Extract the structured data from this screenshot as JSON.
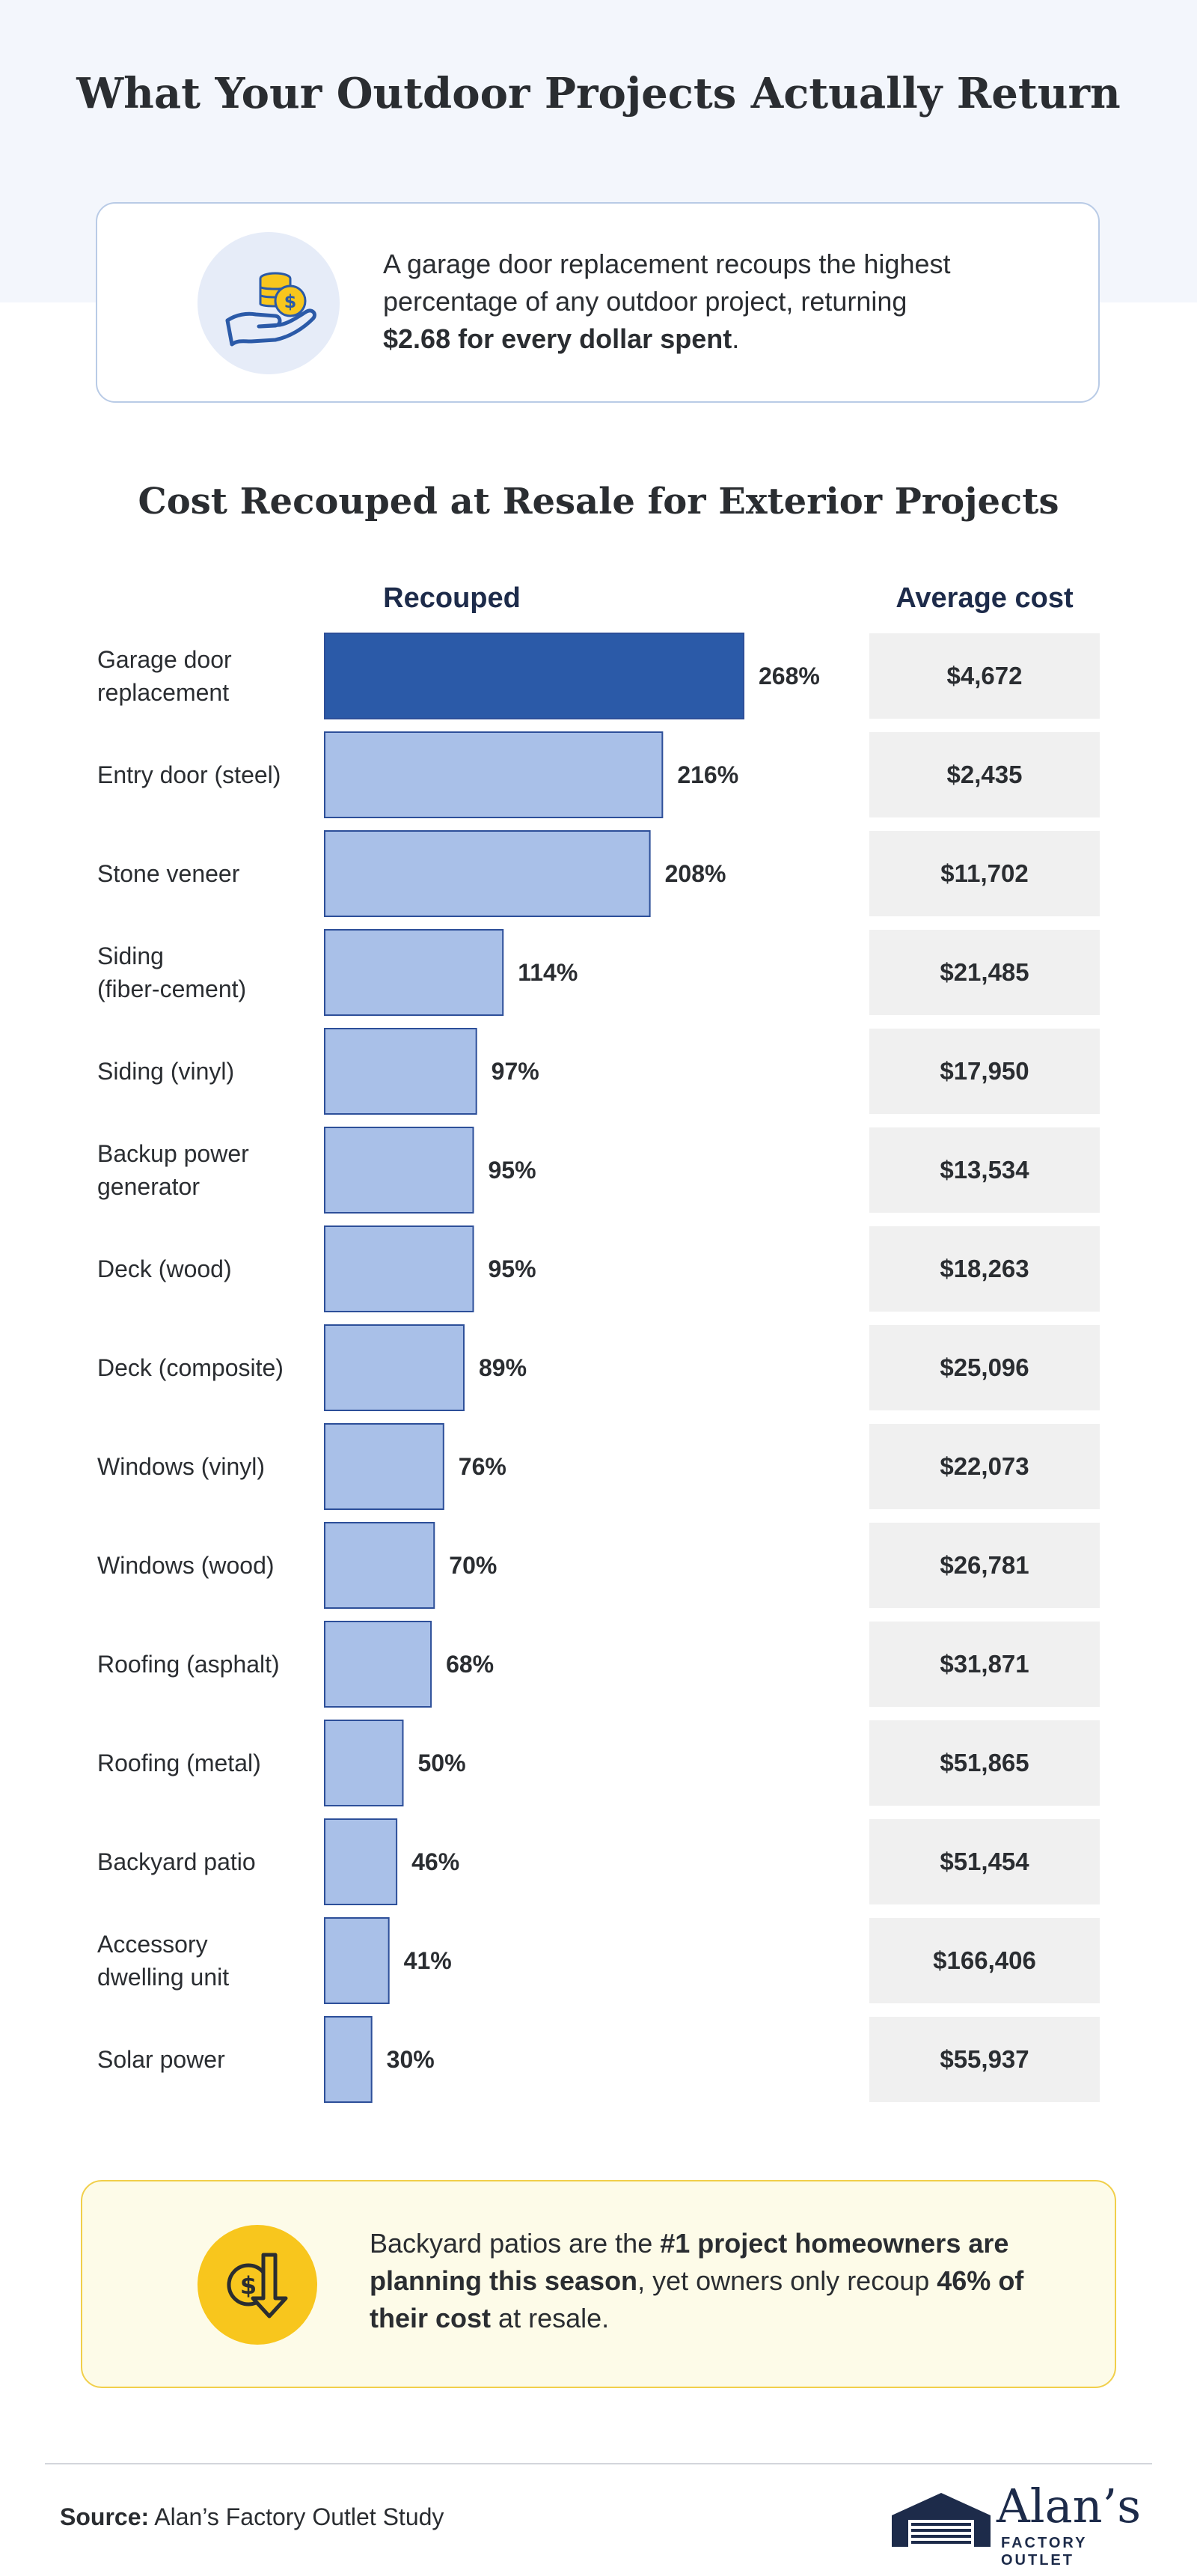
{
  "header": {
    "title": "What Your Outdoor Projects Actually Return"
  },
  "callout": {
    "text_before": "A garage door replacement recoups the highest percentage of any outdoor project, returning ",
    "text_bold": "$2.68 for every dollar spent",
    "text_after": ".",
    "icon": "hand-coins-icon"
  },
  "chart_data": {
    "type": "bar",
    "orientation": "horizontal",
    "title": "Cost Recouped at Resale for Exterior Projects",
    "columns": {
      "recouped": "Recouped",
      "average_cost": "Average cost"
    },
    "categories": [
      [
        "Garage door",
        "replacement"
      ],
      [
        "Entry door (steel)"
      ],
      [
        "Stone veneer"
      ],
      [
        "Siding",
        "(fiber-cement)"
      ],
      [
        "Siding (vinyl)"
      ],
      [
        "Backup power",
        "generator"
      ],
      [
        "Deck (wood)"
      ],
      [
        "Deck (composite)"
      ],
      [
        "Windows (vinyl)"
      ],
      [
        "Windows (wood)"
      ],
      [
        "Roofing (asphalt)"
      ],
      [
        "Roofing (metal)"
      ],
      [
        "Backyard patio"
      ],
      [
        "Accessory",
        "dwelling unit"
      ],
      [
        "Solar power"
      ]
    ],
    "values": [
      268,
      216,
      208,
      114,
      97,
      95,
      95,
      89,
      76,
      70,
      68,
      50,
      46,
      41,
      30
    ],
    "value_labels": [
      "268%",
      "216%",
      "208%",
      "114%",
      "97%",
      "95%",
      "95%",
      "89%",
      "76%",
      "70%",
      "68%",
      "50%",
      "46%",
      "41%",
      "30%"
    ],
    "average_costs": [
      "$4,672",
      "$2,435",
      "$11,702",
      "$21,485",
      "$17,950",
      "$13,534",
      "$18,263",
      "$25,096",
      "$22,073",
      "$26,781",
      "$31,871",
      "$51,865",
      "$51,454",
      "$166,406",
      "$55,937"
    ],
    "highlight_index": 0,
    "colors": {
      "highlight_bar": "#2b5aa8",
      "bar": "#a9c0e8",
      "bar_border": "#2d4f99",
      "cost_cell": "#f0f0f0"
    },
    "grid": false,
    "legend": "none"
  },
  "note": {
    "text_1": "Backyard patios are the ",
    "bold_1": "#1 project homeowners are planning this season",
    "text_2": ", yet owners only recoup ",
    "bold_2": "46% of their cost",
    "text_3": " at resale.",
    "icon": "dollar-down-arrow-icon"
  },
  "footer": {
    "source_label": "Source:",
    "source_text": " Alan’s Factory Outlet Study",
    "logo_name": "Alan’s",
    "logo_sub": "FACTORY OUTLET",
    "logo_icon": "garage-logo-icon"
  }
}
